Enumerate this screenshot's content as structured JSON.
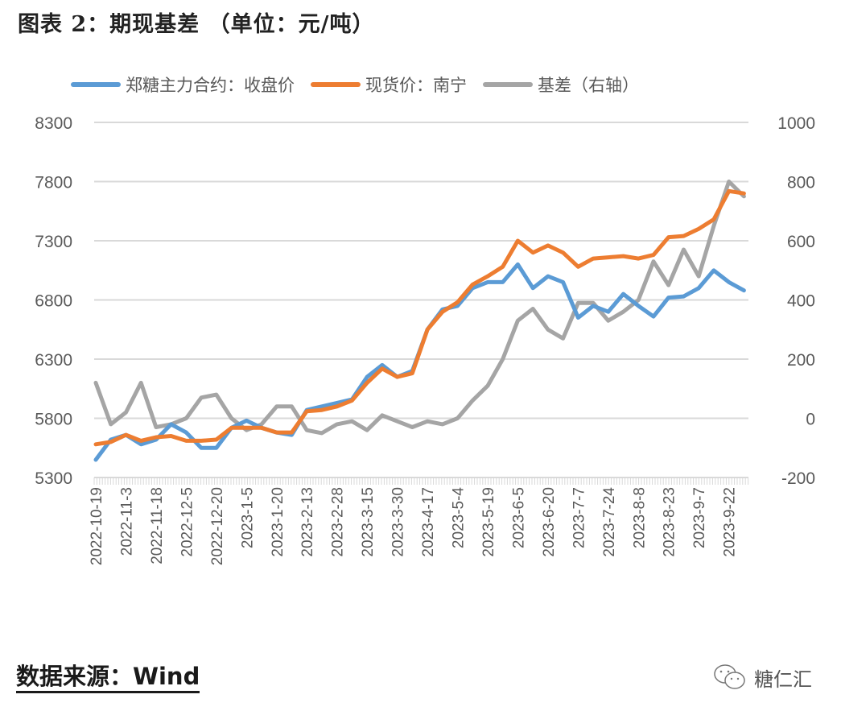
{
  "header": {
    "title": "图表 2：期现基差 （单位：元/吨）"
  },
  "footer": {
    "source": "数据来源：Wind",
    "logo_text": "糖仁汇",
    "logo_icon": "wechat-icon"
  },
  "chart_data": {
    "type": "line",
    "title": "期现基差",
    "unit": "元/吨",
    "legend_position": "top",
    "grid": true,
    "x_labels": [
      "2022-10-19",
      "2022-11-3",
      "2022-11-18",
      "2022-12-5",
      "2022-12-20",
      "2023-1-5",
      "2023-1-20",
      "2023-2-13",
      "2023-2-28",
      "2023-3-15",
      "2023-3-30",
      "2023-4-17",
      "2023-5-4",
      "2023-5-19",
      "2023-6-5",
      "2023-6-20",
      "2023-7-7",
      "2023-7-24",
      "2023-8-8",
      "2023-8-23",
      "2023-9-7",
      "2023-9-22"
    ],
    "x_note": "points sampled every half label interval; label k sits at point index 2k",
    "xlim": [
      0,
      43.3
    ],
    "y_left": {
      "ticks": [
        "8300",
        "7800",
        "7300",
        "6800",
        "6300",
        "5800",
        "5300"
      ],
      "ylim": [
        5300,
        8300
      ]
    },
    "y_right": {
      "ticks": [
        "1000",
        "800",
        "600",
        "400",
        "200",
        "0",
        "-200"
      ],
      "ylim": [
        -200,
        1000
      ]
    },
    "series": [
      {
        "name": "郑糖主力合约：收盘价",
        "axis": "left",
        "color": "#5B9BD5",
        "values": [
          5450,
          5620,
          5660,
          5580,
          5620,
          5750,
          5680,
          5550,
          5550,
          5720,
          5780,
          5720,
          5680,
          5660,
          5870,
          5900,
          5930,
          5960,
          6150,
          6250,
          6150,
          6200,
          6550,
          6720,
          6750,
          6900,
          6950,
          6950,
          7100,
          6900,
          7000,
          6950,
          6650,
          6750,
          6700,
          6850,
          6750,
          6660,
          6820,
          6830,
          6900,
          7050,
          6950,
          6880
        ]
      },
      {
        "name": "现货价：南宁",
        "axis": "left",
        "color": "#ED7D31",
        "values": [
          5580,
          5600,
          5660,
          5610,
          5640,
          5650,
          5610,
          5610,
          5620,
          5720,
          5720,
          5720,
          5680,
          5680,
          5860,
          5870,
          5900,
          5950,
          6100,
          6220,
          6150,
          6180,
          6550,
          6700,
          6780,
          6930,
          7000,
          7080,
          7300,
          7200,
          7260,
          7200,
          7080,
          7150,
          7160,
          7170,
          7150,
          7180,
          7330,
          7340,
          7400,
          7480,
          7720,
          7700
        ]
      },
      {
        "name": "基差（右轴）",
        "axis": "right",
        "color": "#A5A5A5",
        "values": [
          120,
          -20,
          20,
          120,
          -30,
          -20,
          0,
          70,
          80,
          0,
          -40,
          -20,
          40,
          40,
          -40,
          -50,
          -20,
          -10,
          -40,
          10,
          -10,
          -30,
          -10,
          -20,
          0,
          60,
          110,
          200,
          330,
          370,
          300,
          270,
          390,
          390,
          330,
          360,
          400,
          530,
          450,
          570,
          480,
          650,
          800,
          750
        ]
      }
    ]
  }
}
